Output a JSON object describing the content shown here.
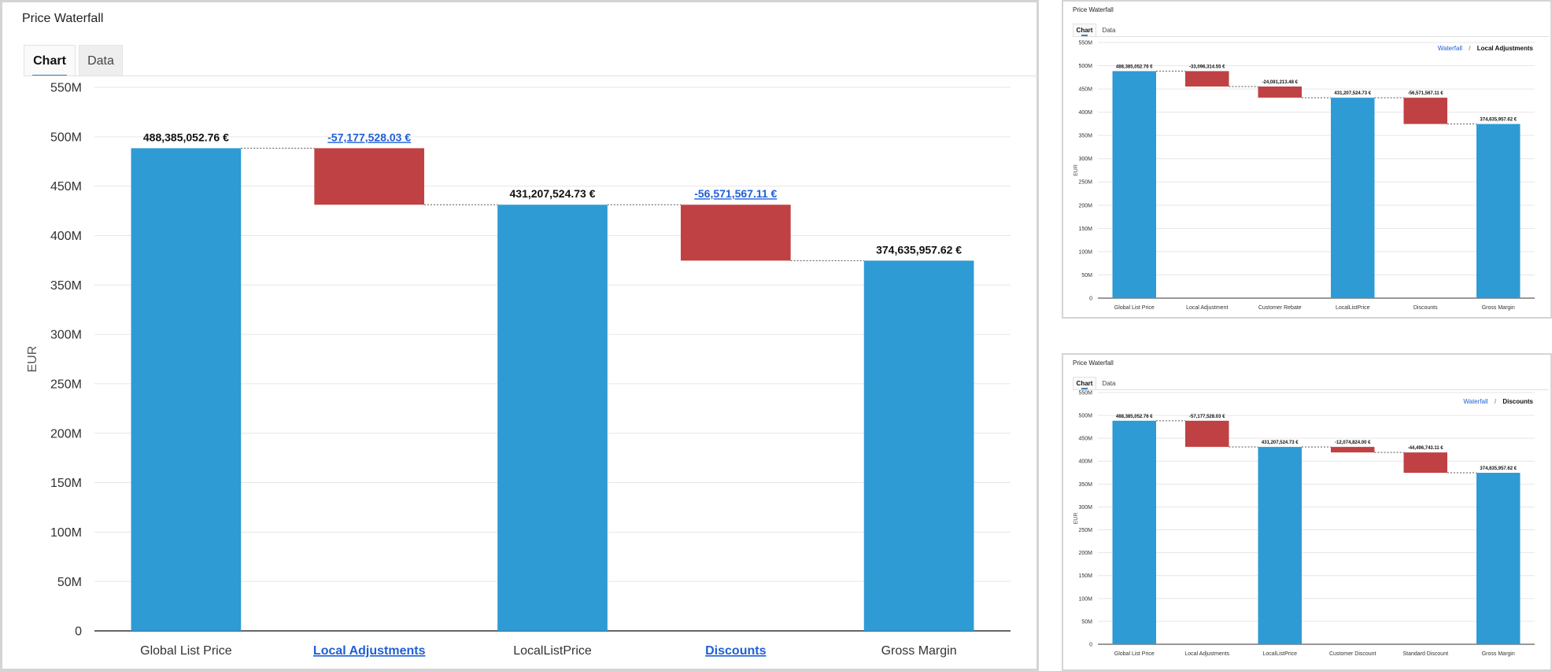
{
  "panels": [
    {
      "title": "Price Waterfall",
      "tabs": [
        "Chart",
        "Data"
      ]
    },
    {
      "title": "Price Waterfall",
      "tabs": [
        "Chart",
        "Data"
      ],
      "breadcrumb": {
        "link": "Waterfall",
        "separator": "/",
        "current": "Local Adjustments"
      }
    },
    {
      "title": "Price Waterfall",
      "tabs": [
        "Chart",
        "Data"
      ],
      "breadcrumb": {
        "link": "Waterfall",
        "separator": "/",
        "current": "Discounts"
      }
    }
  ],
  "colors": {
    "total": "#2e9bd4",
    "negative": "#c04143",
    "link": "#1f5fd6",
    "grid": "#e6e6e6",
    "axis": "#333333",
    "connector": "#555555"
  },
  "chart_data": [
    {
      "type": "bar",
      "subtype": "waterfall",
      "ylabel": "EUR",
      "ylim": [
        0,
        550000000
      ],
      "yticks": [
        0,
        50000000,
        100000000,
        150000000,
        200000000,
        250000000,
        300000000,
        350000000,
        400000000,
        450000000,
        500000000,
        550000000
      ],
      "ytick_labels": [
        "0",
        "50M",
        "100M",
        "150M",
        "200M",
        "250M",
        "300M",
        "350M",
        "400M",
        "450M",
        "500M",
        "550M"
      ],
      "grid": true,
      "categories": [
        "Global List Price",
        "Local Adjustments",
        "LocalListPrice",
        "Discounts",
        "Gross Margin"
      ],
      "kinds": [
        "total",
        "delta",
        "total",
        "delta",
        "total"
      ],
      "values": [
        488385052.76,
        -57177528.03,
        431207524.73,
        -56571567.11,
        374635957.62
      ],
      "data_labels": [
        "488,385,052.76 €",
        "-57,177,528.03 €",
        "431,207,524.73 €",
        "-56,571,567.11 €",
        "374,635,957.62 €"
      ],
      "links": [
        false,
        true,
        false,
        true,
        false
      ]
    },
    {
      "type": "bar",
      "subtype": "waterfall",
      "ylabel": "EUR",
      "ylim": [
        0,
        550000000
      ],
      "yticks": [
        0,
        50000000,
        100000000,
        150000000,
        200000000,
        250000000,
        300000000,
        350000000,
        400000000,
        450000000,
        500000000,
        550000000
      ],
      "ytick_labels": [
        "0",
        "50M",
        "100M",
        "150M",
        "200M",
        "250M",
        "300M",
        "350M",
        "400M",
        "450M",
        "500M",
        "550M"
      ],
      "grid": true,
      "categories": [
        "Global List Price",
        "Local Adjustment",
        "Customer Rebate",
        "LocalListPrice",
        "Discounts",
        "Gross Margin"
      ],
      "kinds": [
        "total",
        "delta",
        "delta",
        "total",
        "delta",
        "total"
      ],
      "values": [
        488385052.76,
        -33096314.55,
        -24081213.48,
        431207524.73,
        -56571567.11,
        374635957.62
      ],
      "data_labels": [
        "488,385,052.76 €",
        "-33,096,314.55 €",
        "-24,081,213.48 €",
        "431,207,524.73 €",
        "-56,571,567.11 €",
        "374,635,957.62 €"
      ],
      "links": [
        false,
        false,
        false,
        false,
        false,
        false
      ]
    },
    {
      "type": "bar",
      "subtype": "waterfall",
      "ylabel": "EUR",
      "ylim": [
        0,
        550000000
      ],
      "yticks": [
        0,
        50000000,
        100000000,
        150000000,
        200000000,
        250000000,
        300000000,
        350000000,
        400000000,
        450000000,
        500000000,
        550000000
      ],
      "ytick_labels": [
        "0",
        "50M",
        "100M",
        "150M",
        "200M",
        "250M",
        "300M",
        "350M",
        "400M",
        "450M",
        "500M",
        "550M"
      ],
      "grid": true,
      "categories": [
        "Global List Price",
        "Local Adjustments",
        "LocalListPrice",
        "Customer Discount",
        "Standard Discount",
        "Gross Margin"
      ],
      "kinds": [
        "total",
        "delta",
        "total",
        "delta",
        "delta",
        "total"
      ],
      "values": [
        488385052.76,
        -57177528.03,
        431207524.73,
        -12074824.0,
        -44496743.11,
        374635957.62
      ],
      "data_labels": [
        "488,385,052.76 €",
        "-57,177,528.03 €",
        "431,207,524.73 €",
        "-12,074,824.00 €",
        "-44,496,743.11 €",
        "374,635,957.62 €"
      ],
      "links": [
        false,
        false,
        false,
        false,
        false,
        false
      ]
    }
  ]
}
